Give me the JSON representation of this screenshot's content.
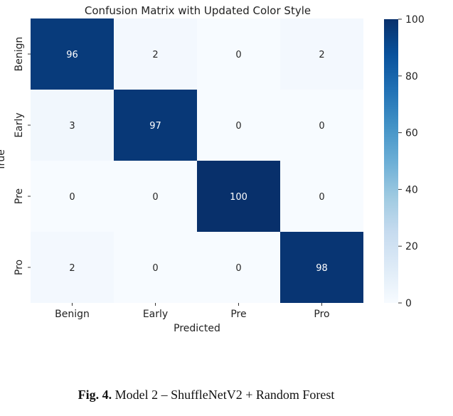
{
  "chart_data": {
    "type": "heatmap",
    "title": "Confusion Matrix with Updated Color Style",
    "xlabel": "Predicted",
    "ylabel": "True",
    "x_categories": [
      "Benign",
      "Early",
      "Pre",
      "Pro"
    ],
    "y_categories": [
      "Benign",
      "Early",
      "Pre",
      "Pro"
    ],
    "values": [
      [
        96,
        2,
        0,
        2
      ],
      [
        3,
        97,
        0,
        0
      ],
      [
        0,
        0,
        100,
        0
      ],
      [
        2,
        0,
        0,
        98
      ]
    ],
    "colorbar": {
      "min": 0,
      "max": 100,
      "ticks": [
        0,
        20,
        40,
        60,
        80,
        100
      ],
      "colormap": "Blues"
    },
    "colors": {
      "low": "#f7fbff",
      "mid": "#c6dbef",
      "high": "#08306b"
    }
  },
  "caption": {
    "label": "Fig. 4.",
    "text": "Model 2 – ShuffleNetV2 + Random Forest"
  }
}
